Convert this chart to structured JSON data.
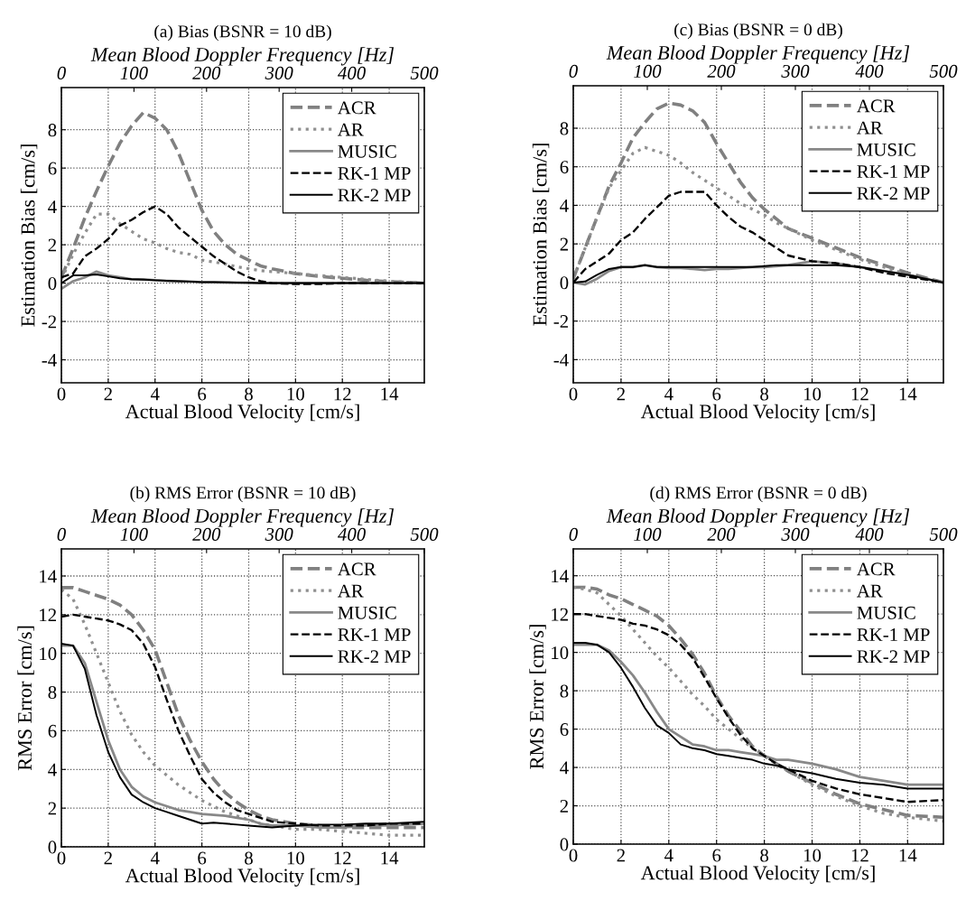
{
  "chart_data": [
    {
      "type": "line",
      "title": "(a) Bias (BSNR = 10 dB)",
      "x2label": "Mean Blood Doppler Frequency [Hz]",
      "xlabel": "Actual Blood Velocity [cm/s]",
      "ylabel": "Estimation Bias [cm/s]",
      "x": [
        0,
        0.5,
        1,
        1.5,
        2,
        2.5,
        3,
        3.5,
        4,
        4.5,
        5,
        5.5,
        6,
        6.5,
        7,
        7.5,
        8,
        8.5,
        9,
        10,
        11,
        12,
        13,
        14,
        15.5
      ],
      "xlim": [
        0,
        15.5
      ],
      "xticks": [
        0,
        2,
        4,
        6,
        8,
        10,
        12,
        14
      ],
      "x2lim": [
        0,
        500
      ],
      "x2ticks": [
        0,
        100,
        200,
        300,
        400,
        500
      ],
      "ylim": [
        -5.2,
        10.2
      ],
      "yticks": [
        -4,
        -2,
        0,
        2,
        4,
        6,
        8
      ],
      "grid": true,
      "legend": "top right",
      "series": [
        {
          "name": "ACR",
          "color": "#808080",
          "line_style": "dashed",
          "values": [
            0.3,
            1.8,
            3.4,
            4.8,
            6.1,
            7.3,
            8.2,
            8.9,
            8.6,
            8.0,
            6.8,
            5.3,
            3.8,
            2.7,
            2.0,
            1.5,
            1.2,
            0.9,
            0.75,
            0.5,
            0.35,
            0.25,
            0.15,
            0.08,
            0
          ]
        },
        {
          "name": "AR",
          "color": "#909090",
          "line_style": "dotted",
          "values": [
            0.2,
            1.5,
            2.6,
            3.6,
            3.6,
            3.1,
            2.7,
            2.3,
            2.1,
            1.8,
            1.6,
            1.5,
            1.2,
            1.1,
            1.0,
            0.85,
            0.75,
            0.65,
            0.6,
            0.5,
            0.4,
            0.3,
            0.2,
            0.1,
            0
          ]
        },
        {
          "name": "MUSIC",
          "color": "#888888",
          "line_style": "solid",
          "values": [
            -0.3,
            0.1,
            0.3,
            0.6,
            0.4,
            0.3,
            0.2,
            0.2,
            0.15,
            0.12,
            0.1,
            0.08,
            0.05,
            0.05,
            0.03,
            0.02,
            0.02,
            0,
            0,
            0,
            0,
            0,
            0,
            0,
            0
          ]
        },
        {
          "name": "RK-1 MP",
          "color": "#000000",
          "line_style": "dashed",
          "values": [
            0.3,
            0.5,
            1.4,
            1.8,
            2.3,
            3.0,
            3.3,
            3.7,
            4.0,
            3.6,
            2.9,
            2.4,
            1.9,
            1.4,
            1.0,
            0.6,
            0.3,
            0.1,
            0,
            -0.05,
            -0.05,
            0,
            0,
            0,
            0
          ]
        },
        {
          "name": "RK-2 MP",
          "color": "#000000",
          "line_style": "solid",
          "values": [
            0,
            0.4,
            0.4,
            0.45,
            0.35,
            0.25,
            0.2,
            0.18,
            0.15,
            0.12,
            0.1,
            0.08,
            0.05,
            0.05,
            0.04,
            0.03,
            0.02,
            0,
            0,
            0,
            0,
            0,
            0,
            0,
            0
          ]
        }
      ]
    },
    {
      "type": "line",
      "title": "(c) Bias (BSNR = 0 dB)",
      "x2label": "Mean Blood Doppler Frequency [Hz]",
      "xlabel": "Actual Blood Velocity [cm/s]",
      "ylabel": "Estimation Bias [cm/s]",
      "x": [
        0,
        0.5,
        1,
        1.5,
        2,
        2.5,
        3,
        3.5,
        4,
        4.5,
        5,
        5.5,
        6,
        6.5,
        7,
        7.5,
        8,
        8.5,
        9,
        10,
        11,
        12,
        13,
        14,
        15.5
      ],
      "xlim": [
        0,
        15.5
      ],
      "xticks": [
        0,
        2,
        4,
        6,
        8,
        10,
        12,
        14
      ],
      "x2lim": [
        0,
        500
      ],
      "x2ticks": [
        0,
        100,
        200,
        300,
        400,
        500
      ],
      "ylim": [
        -5.2,
        10.2
      ],
      "yticks": [
        -4,
        -2,
        0,
        2,
        4,
        6,
        8
      ],
      "grid": true,
      "legend": "top right",
      "series": [
        {
          "name": "ACR",
          "color": "#808080",
          "line_style": "dashed",
          "values": [
            0.2,
            1.8,
            3.4,
            5.0,
            6.2,
            7.5,
            8.3,
            9.0,
            9.3,
            9.2,
            8.9,
            8.3,
            7.2,
            6.2,
            5.2,
            4.4,
            3.8,
            3.3,
            2.8,
            2.3,
            1.8,
            1.3,
            0.9,
            0.5,
            0
          ]
        },
        {
          "name": "AR",
          "color": "#909090",
          "line_style": "dotted",
          "values": [
            0.2,
            1.8,
            3.4,
            4.9,
            5.8,
            6.7,
            7.0,
            6.8,
            6.6,
            6.2,
            5.7,
            5.3,
            4.9,
            4.5,
            4.1,
            3.8,
            3.5,
            3.1,
            2.8,
            2.2,
            1.7,
            1.2,
            0.8,
            0.4,
            0
          ]
        },
        {
          "name": "MUSIC",
          "color": "#888888",
          "line_style": "solid",
          "values": [
            0,
            -0.1,
            0.2,
            0.6,
            0.8,
            0.8,
            0.9,
            0.8,
            0.75,
            0.75,
            0.7,
            0.65,
            0.7,
            0.7,
            0.75,
            0.8,
            0.8,
            0.85,
            0.9,
            1.1,
            1.0,
            0.8,
            0.6,
            0.4,
            0
          ]
        },
        {
          "name": "RK-1 MP",
          "color": "#000000",
          "line_style": "dashed",
          "values": [
            0,
            0.7,
            1.1,
            1.5,
            2.2,
            2.6,
            3.3,
            3.9,
            4.5,
            4.7,
            4.7,
            4.7,
            4.0,
            3.4,
            2.9,
            2.6,
            2.2,
            1.8,
            1.4,
            1.1,
            1.0,
            0.8,
            0.5,
            0.3,
            0
          ]
        },
        {
          "name": "RK-2 MP",
          "color": "#000000",
          "line_style": "solid",
          "values": [
            0,
            0.05,
            0.4,
            0.7,
            0.8,
            0.8,
            0.9,
            0.8,
            0.8,
            0.8,
            0.8,
            0.8,
            0.8,
            0.8,
            0.8,
            0.8,
            0.85,
            0.9,
            0.9,
            0.9,
            0.9,
            0.8,
            0.6,
            0.4,
            0
          ]
        }
      ]
    },
    {
      "type": "line",
      "title": "(b) RMS Error (BSNR = 10 dB)",
      "x2label": "Mean Blood Doppler Frequency [Hz]",
      "xlabel": "Actual Blood Velocity [cm/s]",
      "ylabel": "RMS Error [cm/s]",
      "x": [
        0,
        0.5,
        1,
        1.5,
        2,
        2.5,
        3,
        3.5,
        4,
        4.5,
        5,
        5.5,
        6,
        6.5,
        7,
        7.5,
        8,
        8.5,
        9,
        10,
        11,
        12,
        13,
        14,
        15.5
      ],
      "xlim": [
        0,
        15.5
      ],
      "xticks": [
        0,
        2,
        4,
        6,
        8,
        10,
        12,
        14
      ],
      "x2lim": [
        0,
        500
      ],
      "x2ticks": [
        0,
        100,
        200,
        300,
        400,
        500
      ],
      "ylim": [
        0,
        15.4
      ],
      "yticks": [
        0,
        2,
        4,
        6,
        8,
        10,
        12,
        14
      ],
      "grid": true,
      "legend": "top right",
      "series": [
        {
          "name": "ACR",
          "color": "#808080",
          "line_style": "dashed",
          "values": [
            13.4,
            13.4,
            13.2,
            13.0,
            12.8,
            12.5,
            12.0,
            11.2,
            10.2,
            8.5,
            6.8,
            5.5,
            4.4,
            3.5,
            2.8,
            2.3,
            1.9,
            1.6,
            1.4,
            1.2,
            1.1,
            1.0,
            1.0,
            1.0,
            1.0
          ]
        },
        {
          "name": "AR",
          "color": "#909090",
          "line_style": "dotted",
          "values": [
            13.3,
            12.8,
            11.5,
            10.0,
            8.5,
            7.0,
            5.8,
            4.9,
            4.2,
            3.7,
            3.2,
            2.8,
            2.4,
            2.1,
            1.8,
            1.6,
            1.4,
            1.2,
            1.1,
            0.9,
            0.9,
            0.8,
            0.7,
            0.6,
            0.6
          ]
        },
        {
          "name": "MUSIC",
          "color": "#888888",
          "line_style": "solid",
          "values": [
            10.4,
            10.4,
            9.5,
            7.5,
            5.5,
            4.0,
            3.1,
            2.6,
            2.3,
            2.1,
            1.9,
            1.8,
            1.7,
            1.65,
            1.6,
            1.5,
            1.4,
            1.2,
            1.1,
            1.1,
            1.0,
            1.0,
            1.1,
            1.1,
            1.2
          ]
        },
        {
          "name": "RK-1 MP",
          "color": "#000000",
          "line_style": "dashed",
          "values": [
            11.9,
            12.0,
            11.9,
            11.8,
            11.7,
            11.5,
            11.2,
            10.5,
            9.3,
            7.6,
            6.0,
            4.7,
            3.5,
            2.8,
            2.3,
            1.9,
            1.7,
            1.5,
            1.3,
            1.2,
            1.1,
            1.1,
            1.1,
            1.2,
            1.2
          ]
        },
        {
          "name": "RK-2 MP",
          "color": "#000000",
          "line_style": "solid",
          "values": [
            10.5,
            10.4,
            9.2,
            6.8,
            4.9,
            3.6,
            2.7,
            2.3,
            2.0,
            1.8,
            1.6,
            1.4,
            1.2,
            1.25,
            1.2,
            1.15,
            1.1,
            1.05,
            1.0,
            1.1,
            1.15,
            1.15,
            1.2,
            1.2,
            1.3
          ]
        }
      ]
    },
    {
      "type": "line",
      "title": "(d) RMS Error (BSNR = 0 dB)",
      "x2label": "Mean Blood Doppler Frequency [Hz]",
      "xlabel": "Actual Blood Velocity [cm/s]",
      "ylabel": "RMS Error [cm/s]",
      "x": [
        0,
        0.5,
        1,
        1.5,
        2,
        2.5,
        3,
        3.5,
        4,
        4.5,
        5,
        5.5,
        6,
        6.5,
        7,
        7.5,
        8,
        8.5,
        9,
        10,
        11,
        12,
        13,
        14,
        15.5
      ],
      "xlim": [
        0,
        15.5
      ],
      "xticks": [
        0,
        2,
        4,
        6,
        8,
        10,
        12,
        14
      ],
      "x2lim": [
        0,
        500
      ],
      "x2ticks": [
        0,
        100,
        200,
        300,
        400,
        500
      ],
      "ylim": [
        0,
        15.4
      ],
      "yticks": [
        0,
        2,
        4,
        6,
        8,
        10,
        12,
        14
      ],
      "grid": true,
      "legend": "top right",
      "series": [
        {
          "name": "ACR",
          "color": "#808080",
          "line_style": "dashed",
          "values": [
            13.4,
            13.4,
            13.3,
            13.0,
            12.8,
            12.5,
            12.2,
            11.9,
            11.4,
            10.7,
            9.9,
            8.9,
            7.7,
            6.7,
            5.9,
            5.1,
            4.6,
            4.2,
            3.8,
            3.2,
            2.6,
            2.1,
            1.8,
            1.5,
            1.4
          ]
        },
        {
          "name": "AR",
          "color": "#909090",
          "line_style": "dotted",
          "values": [
            13.4,
            13.3,
            13.1,
            12.5,
            11.9,
            11.2,
            10.5,
            9.8,
            9.2,
            8.5,
            7.8,
            7.2,
            6.5,
            6.0,
            5.5,
            5.0,
            4.6,
            4.2,
            3.8,
            3.1,
            2.5,
            2.0,
            1.6,
            1.4,
            1.2
          ]
        },
        {
          "name": "MUSIC",
          "color": "#888888",
          "line_style": "solid",
          "values": [
            10.4,
            10.4,
            10.4,
            10.1,
            9.5,
            8.8,
            7.9,
            6.9,
            6.0,
            5.6,
            5.2,
            5.1,
            4.9,
            4.9,
            4.8,
            4.7,
            4.6,
            4.4,
            4.4,
            4.2,
            3.9,
            3.5,
            3.3,
            3.1,
            3.1
          ]
        },
        {
          "name": "RK-1 MP",
          "color": "#000000",
          "line_style": "dashed",
          "values": [
            12.0,
            12.0,
            11.9,
            11.8,
            11.7,
            11.5,
            11.4,
            11.2,
            10.9,
            10.4,
            9.7,
            8.7,
            7.6,
            6.6,
            5.7,
            5.0,
            4.6,
            4.2,
            3.9,
            3.3,
            2.9,
            2.6,
            2.4,
            2.2,
            2.3
          ]
        },
        {
          "name": "RK-2 MP",
          "color": "#000000",
          "line_style": "solid",
          "values": [
            10.5,
            10.5,
            10.4,
            10.0,
            9.2,
            8.2,
            7.1,
            6.2,
            5.8,
            5.2,
            5.0,
            4.9,
            4.7,
            4.6,
            4.5,
            4.4,
            4.2,
            4.1,
            3.9,
            3.7,
            3.4,
            3.2,
            3.1,
            2.9,
            2.9
          ]
        }
      ]
    }
  ]
}
